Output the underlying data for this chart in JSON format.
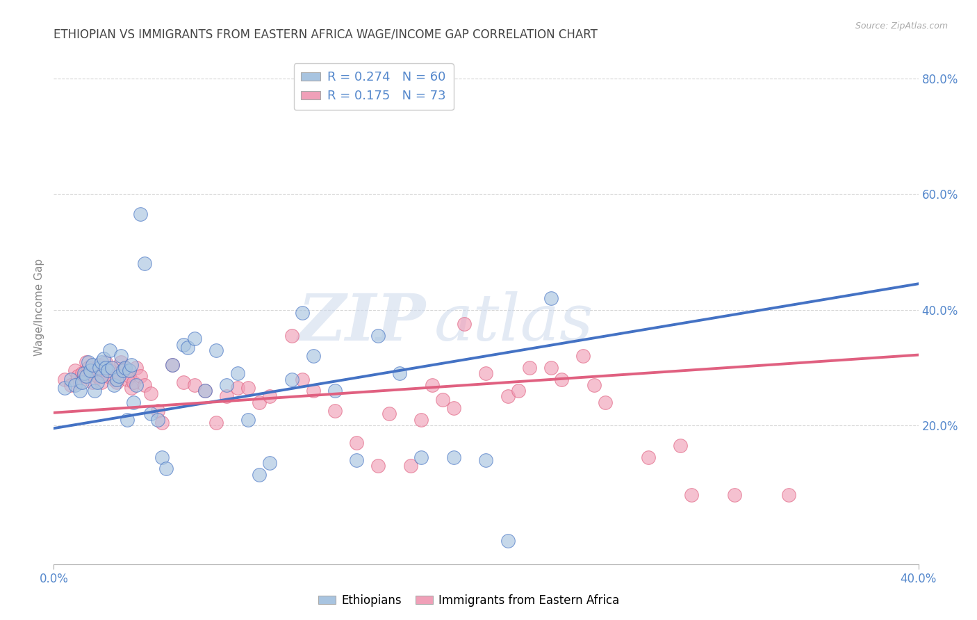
{
  "title": "ETHIOPIAN VS IMMIGRANTS FROM EASTERN AFRICA WAGE/INCOME GAP CORRELATION CHART",
  "source": "Source: ZipAtlas.com",
  "ylabel": "Wage/Income Gap",
  "xlabel": "",
  "xlim": [
    0.0,
    0.4
  ],
  "ylim": [
    -0.04,
    0.85
  ],
  "yticks": [
    0.2,
    0.4,
    0.6,
    0.8
  ],
  "ytick_labels": [
    "20.0%",
    "40.0%",
    "60.0%",
    "80.0%"
  ],
  "xtick_labels": [
    "0.0%",
    "40.0%"
  ],
  "legend_r_blue": "0.274",
  "legend_n_blue": "60",
  "legend_r_pink": "0.175",
  "legend_n_pink": "73",
  "blue_color": "#a8c4e0",
  "pink_color": "#f0a0b8",
  "line_blue": "#4472C4",
  "line_pink": "#E06080",
  "watermark_zip": "ZIP",
  "watermark_atlas": "atlas",
  "blue_line_x0": 0.0,
  "blue_line_y0": 0.195,
  "blue_line_x1": 0.4,
  "blue_line_y1": 0.445,
  "pink_line_x0": 0.0,
  "pink_line_y0": 0.222,
  "pink_line_x1": 0.4,
  "pink_line_y1": 0.322,
  "blue_x": [
    0.005,
    0.008,
    0.01,
    0.012,
    0.013,
    0.014,
    0.015,
    0.016,
    0.017,
    0.018,
    0.019,
    0.02,
    0.021,
    0.022,
    0.022,
    0.023,
    0.024,
    0.025,
    0.026,
    0.027,
    0.028,
    0.029,
    0.03,
    0.031,
    0.032,
    0.033,
    0.034,
    0.035,
    0.036,
    0.037,
    0.038,
    0.04,
    0.042,
    0.045,
    0.048,
    0.05,
    0.052,
    0.055,
    0.06,
    0.062,
    0.065,
    0.07,
    0.075,
    0.08,
    0.085,
    0.09,
    0.095,
    0.1,
    0.11,
    0.115,
    0.12,
    0.13,
    0.14,
    0.15,
    0.16,
    0.17,
    0.185,
    0.2,
    0.21,
    0.23
  ],
  "blue_y": [
    0.265,
    0.28,
    0.27,
    0.26,
    0.275,
    0.29,
    0.285,
    0.31,
    0.295,
    0.305,
    0.26,
    0.275,
    0.3,
    0.31,
    0.285,
    0.315,
    0.3,
    0.295,
    0.33,
    0.3,
    0.27,
    0.28,
    0.285,
    0.32,
    0.295,
    0.3,
    0.21,
    0.295,
    0.305,
    0.24,
    0.27,
    0.565,
    0.48,
    0.22,
    0.21,
    0.145,
    0.125,
    0.305,
    0.34,
    0.335,
    0.35,
    0.26,
    0.33,
    0.27,
    0.29,
    0.21,
    0.115,
    0.135,
    0.28,
    0.395,
    0.32,
    0.26,
    0.14,
    0.355,
    0.29,
    0.145,
    0.145,
    0.14,
    0.0,
    0.42
  ],
  "pink_x": [
    0.005,
    0.008,
    0.01,
    0.011,
    0.012,
    0.013,
    0.014,
    0.015,
    0.016,
    0.017,
    0.018,
    0.019,
    0.02,
    0.021,
    0.022,
    0.023,
    0.024,
    0.025,
    0.026,
    0.027,
    0.028,
    0.029,
    0.03,
    0.031,
    0.032,
    0.033,
    0.034,
    0.035,
    0.036,
    0.037,
    0.038,
    0.04,
    0.042,
    0.045,
    0.048,
    0.05,
    0.055,
    0.06,
    0.065,
    0.07,
    0.075,
    0.08,
    0.085,
    0.09,
    0.095,
    0.1,
    0.11,
    0.115,
    0.12,
    0.13,
    0.14,
    0.15,
    0.155,
    0.165,
    0.17,
    0.175,
    0.18,
    0.185,
    0.19,
    0.2,
    0.21,
    0.215,
    0.22,
    0.23,
    0.235,
    0.245,
    0.25,
    0.255,
    0.275,
    0.29,
    0.295,
    0.315,
    0.34
  ],
  "pink_y": [
    0.28,
    0.27,
    0.295,
    0.285,
    0.275,
    0.29,
    0.285,
    0.31,
    0.3,
    0.29,
    0.275,
    0.295,
    0.285,
    0.305,
    0.275,
    0.29,
    0.31,
    0.285,
    0.295,
    0.3,
    0.28,
    0.275,
    0.29,
    0.31,
    0.295,
    0.3,
    0.28,
    0.285,
    0.265,
    0.275,
    0.3,
    0.285,
    0.27,
    0.255,
    0.225,
    0.205,
    0.305,
    0.275,
    0.27,
    0.26,
    0.205,
    0.25,
    0.265,
    0.265,
    0.24,
    0.25,
    0.355,
    0.28,
    0.26,
    0.225,
    0.17,
    0.13,
    0.22,
    0.13,
    0.21,
    0.27,
    0.245,
    0.23,
    0.375,
    0.29,
    0.25,
    0.26,
    0.3,
    0.3,
    0.28,
    0.32,
    0.27,
    0.24,
    0.145,
    0.165,
    0.08,
    0.08,
    0.08
  ],
  "background_color": "#ffffff",
  "grid_color": "#cccccc",
  "title_color": "#444444",
  "axis_label_color": "#5588cc",
  "right_axis_color": "#5588cc"
}
